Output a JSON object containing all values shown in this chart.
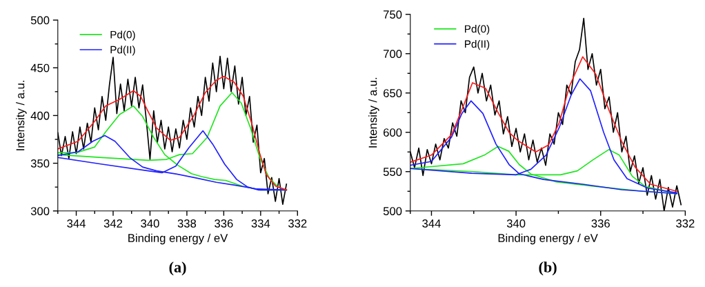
{
  "chart_data": [
    {
      "type": "line",
      "xlabel": "Binding energy / eV",
      "ylabel": "Intensity / a.u.",
      "xlim": [
        345,
        332
      ],
      "xticks": [
        {
          "value": 345,
          "label": null
        },
        344,
        {
          "value": 343,
          "label": null
        },
        342,
        {
          "value": 341,
          "label": null
        },
        340,
        {
          "value": 339,
          "label": null
        },
        338,
        {
          "value": 337,
          "label": null
        },
        336,
        {
          "value": 335,
          "label": null
        },
        334,
        {
          "value": 333,
          "label": null
        },
        332
      ],
      "ylim": [
        300,
        500
      ],
      "yticks": [
        300,
        {
          "value": 325,
          "label": null
        },
        350,
        {
          "value": 375,
          "label": null
        },
        400,
        {
          "value": 425,
          "label": null
        },
        450,
        {
          "value": 475,
          "label": null
        },
        500
      ],
      "legend": "top left",
      "grid": false,
      "annotations": [
        "(a)"
      ],
      "series": [
        {
          "color": "#000000",
          "x": [
            345.0,
            344.8,
            344.6,
            344.4,
            344.2,
            344.0,
            343.8,
            343.6,
            343.4,
            343.2,
            343.0,
            342.8,
            342.6,
            342.4,
            342.2,
            342.0,
            341.8,
            341.6,
            341.4,
            341.2,
            341.0,
            340.8,
            340.6,
            340.4,
            340.2,
            340.0,
            339.8,
            339.6,
            339.4,
            339.2,
            339.0,
            338.8,
            338.6,
            338.4,
            338.2,
            338.0,
            337.8,
            337.6,
            337.4,
            337.2,
            337.0,
            336.8,
            336.6,
            336.4,
            336.2,
            336.0,
            335.8,
            335.6,
            335.4,
            335.2,
            335.0,
            334.8,
            334.6,
            334.4,
            334.2,
            334.0,
            333.8,
            333.6,
            333.4,
            333.2,
            333.0,
            332.8,
            332.6
          ],
          "values": [
            382,
            358,
            378,
            355,
            383,
            360,
            388,
            365,
            392,
            372,
            408,
            385,
            420,
            395,
            432,
            461,
            402,
            433,
            405,
            438,
            410,
            440,
            408,
            432,
            395,
            354,
            405,
            372,
            395,
            365,
            388,
            362,
            386,
            366,
            395,
            375,
            408,
            388,
            420,
            400,
            440,
            415,
            455,
            425,
            462,
            428,
            460,
            425,
            452,
            412,
            440,
            400,
            420,
            372,
            390,
            340,
            355,
            318,
            335,
            310,
            334,
            307,
            328
          ]
        },
        {
          "name": "Pd(0)",
          "color": "#1ee61e",
          "x": [
            345,
            344,
            343,
            342.4,
            341.65,
            340.9,
            340.4,
            339.8,
            339.2,
            338.5,
            337.75,
            337.2,
            336.5,
            335.9,
            335,
            334,
            332.6
          ],
          "values": [
            361,
            361,
            367,
            383,
            401,
            410,
            399,
            377,
            359,
            348,
            339,
            336,
            333,
            332,
            326,
            322,
            322
          ]
        },
        {
          "color": "#1ee61e",
          "x": [
            345,
            342.6,
            340.1,
            339.1,
            338.4,
            337.7,
            336.9,
            336.2,
            335.55,
            335.05,
            334.55,
            334.05,
            333.55,
            333.05,
            332.6
          ],
          "values": [
            359,
            356,
            353,
            354,
            359,
            360,
            377,
            410,
            424,
            413,
            387,
            356,
            335,
            325,
            322
          ]
        },
        {
          "name": "Pd(II)",
          "color": "#2020ff",
          "x": [
            345,
            343.9,
            343.1,
            342.45,
            341.9,
            341.1,
            340.4,
            339.65,
            338.65,
            337.6,
            336.4,
            335.4,
            334.2,
            332.6
          ],
          "values": [
            358,
            362,
            373,
            379,
            373,
            356,
            346,
            342,
            339,
            335,
            330,
            327,
            323,
            322
          ]
        },
        {
          "color": "#2020ff",
          "x": [
            345,
            342.6,
            340.1,
            339.35,
            338.6,
            337.9,
            337.13,
            336.6,
            335.95,
            335.3,
            334.7,
            334.1,
            332.6
          ],
          "values": [
            356,
            349,
            342,
            340,
            347,
            366,
            384,
            370,
            349,
            333,
            325,
            322,
            322
          ]
        },
        {
          "color": "#ff1a1a",
          "x": [
            345,
            343.9,
            343,
            342.4,
            341.65,
            340.9,
            340.5,
            340.15,
            339.65,
            338.9,
            338.4,
            337.65,
            337,
            336.4,
            336,
            335.44,
            334.94,
            334.44,
            334.06,
            333.69,
            333.19,
            332.6
          ],
          "values": [
            365,
            373,
            394,
            410,
            417,
            426,
            420,
            406,
            387,
            374,
            377,
            399,
            424,
            437,
            441,
            435,
            420,
            389,
            361,
            338,
            326,
            322
          ]
        }
      ]
    },
    {
      "type": "line",
      "xlabel": "Binding energy / eV",
      "ylabel": "Intensity / a.u.",
      "xlim": [
        345,
        332
      ],
      "xticks": [
        {
          "value": 345,
          "label": null
        },
        344,
        {
          "value": 342,
          "label": null
        },
        340,
        {
          "value": 338,
          "label": null
        },
        336,
        {
          "value": 334,
          "label": null
        },
        332
      ],
      "ylim": [
        500,
        750
      ],
      "yticks": [
        500,
        {
          "value": 525,
          "label": null
        },
        550,
        {
          "value": 575,
          "label": null
        },
        600,
        {
          "value": 625,
          "label": null
        },
        650,
        {
          "value": 675,
          "label": null
        },
        700,
        {
          "value": 725,
          "label": null
        },
        750
      ],
      "legend": "top left",
      "grid": false,
      "annotations": [
        "(b)"
      ],
      "series": [
        {
          "color": "#000000",
          "x": [
            345.0,
            344.8,
            344.6,
            344.4,
            344.2,
            344.0,
            343.8,
            343.6,
            343.4,
            343.2,
            343.0,
            342.8,
            342.6,
            342.4,
            342.2,
            342.0,
            341.8,
            341.6,
            341.4,
            341.2,
            341.0,
            340.8,
            340.6,
            340.4,
            340.2,
            340.0,
            339.8,
            339.6,
            339.4,
            339.2,
            339.0,
            338.8,
            338.6,
            338.4,
            338.2,
            338.0,
            337.8,
            337.6,
            337.4,
            337.2,
            337.0,
            336.8,
            336.6,
            336.4,
            336.2,
            336.0,
            335.8,
            335.6,
            335.4,
            335.2,
            335.0,
            334.8,
            334.6,
            334.4,
            334.2,
            334.0,
            333.8,
            333.6,
            333.4,
            333.2,
            333.0,
            332.8,
            332.6,
            332.4,
            332.2
          ],
          "values": [
            575,
            555,
            580,
            545,
            578,
            560,
            585,
            565,
            592,
            580,
            612,
            595,
            640,
            625,
            670,
            683,
            650,
            675,
            640,
            660,
            622,
            640,
            598,
            620,
            582,
            605,
            575,
            598,
            565,
            590,
            562,
            580,
            558,
            598,
            585,
            625,
            610,
            660,
            648,
            690,
            705,
            745,
            680,
            700,
            660,
            680,
            630,
            645,
            600,
            625,
            575,
            595,
            550,
            570,
            535,
            555,
            520,
            545,
            515,
            540,
            500,
            530,
            505,
            532,
            508
          ]
        },
        {
          "name": "Pd(0)",
          "color": "#1ee61e",
          "x": [
            345,
            342.5,
            341.5,
            340.85,
            340.35,
            339.85,
            339.3,
            338.1,
            336.2,
            334,
            332.4
          ],
          "values": [
            554,
            560,
            571,
            582,
            576,
            559,
            547,
            537,
            531,
            525,
            522
          ]
        },
        {
          "color": "#1ee61e",
          "x": [
            345,
            342,
            340,
            337.9,
            337.1,
            336.36,
            335.62,
            335.12,
            334.5,
            333.89,
            332.4
          ],
          "values": [
            554,
            550,
            546,
            546,
            551,
            565,
            578,
            571,
            544,
            531,
            522
          ]
        },
        {
          "name": "Pd(II)",
          "color": "#2020ff",
          "x": [
            345,
            344,
            343.05,
            342.56,
            342.13,
            341.57,
            340.95,
            340.33,
            339.84,
            339.8,
            338.7,
            336.85,
            335,
            332.4
          ],
          "values": [
            558,
            563,
            594,
            624,
            640,
            624,
            585,
            559,
            547,
            547,
            540,
            534,
            527,
            522
          ]
        },
        {
          "color": "#2020ff",
          "x": [
            345,
            342.1,
            340,
            339.3,
            338.58,
            337.96,
            337.4,
            336.98,
            336.48,
            335.86,
            335.37,
            334.75,
            333.77,
            332.4
          ],
          "values": [
            554,
            548,
            546,
            553,
            571,
            606,
            647,
            668,
            653,
            600,
            565,
            541,
            529,
            523
          ]
        },
        {
          "color": "#ff1a1a",
          "x": [
            345,
            344,
            343.05,
            342.56,
            342.06,
            341.44,
            340.83,
            340.33,
            339.94,
            339.07,
            338.46,
            337.96,
            337.47,
            336.85,
            336.23,
            335.62,
            335,
            334.38,
            333.64,
            332.4
          ],
          "values": [
            562,
            571,
            597,
            629,
            663,
            656,
            624,
            600,
            590,
            575,
            584,
            612,
            659,
            696,
            674,
            629,
            588,
            556,
            534,
            525
          ]
        }
      ]
    }
  ]
}
